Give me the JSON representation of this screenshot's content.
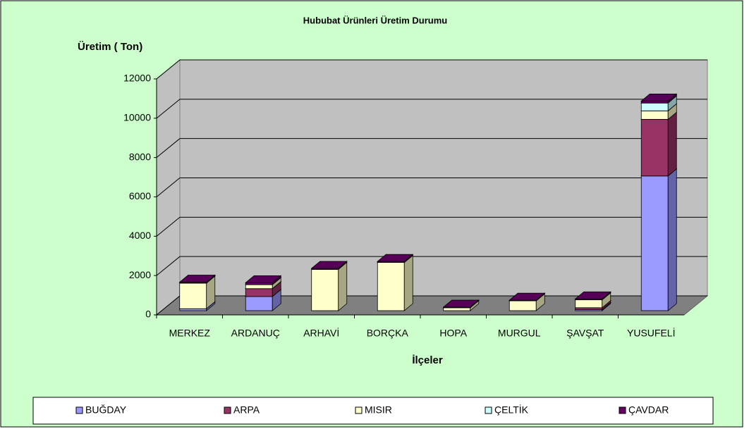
{
  "chart_data": {
    "type": "bar3d_stacked",
    "title": "Hububat Ürünleri Üretim Durumu",
    "y_label": "Üretim ( Ton)",
    "x_label": "İlçeler",
    "categories": [
      "MERKEZ",
      "ARDANUÇ",
      "ARHAVİ",
      "BORÇKA",
      "HOPA",
      "MURGUL",
      "ŞAVŞAT",
      "YUSUFELİ"
    ],
    "series": [
      {
        "name": "BUĞDAY",
        "color": "#9999ff",
        "values": [
          100,
          720,
          0,
          0,
          0,
          0,
          50,
          6850
        ]
      },
      {
        "name": "ARPA",
        "color": "#993366",
        "values": [
          0,
          400,
          0,
          0,
          0,
          0,
          100,
          2880
        ]
      },
      {
        "name": "MISIR",
        "color": "#ffffcc",
        "values": [
          1300,
          200,
          2100,
          2450,
          150,
          500,
          400,
          430
        ]
      },
      {
        "name": "ÇELTİK",
        "color": "#ccffff",
        "values": [
          0,
          0,
          0,
          0,
          0,
          0,
          0,
          400
        ]
      },
      {
        "name": "ÇAVDAR",
        "color": "#660066",
        "values": [
          50,
          100,
          50,
          50,
          30,
          30,
          50,
          100
        ]
      }
    ],
    "ylim": [
      0,
      12000
    ],
    "yticks": [
      0,
      2000,
      4000,
      6000,
      8000,
      10000,
      12000
    ],
    "grid": true,
    "legend": "bottom"
  }
}
